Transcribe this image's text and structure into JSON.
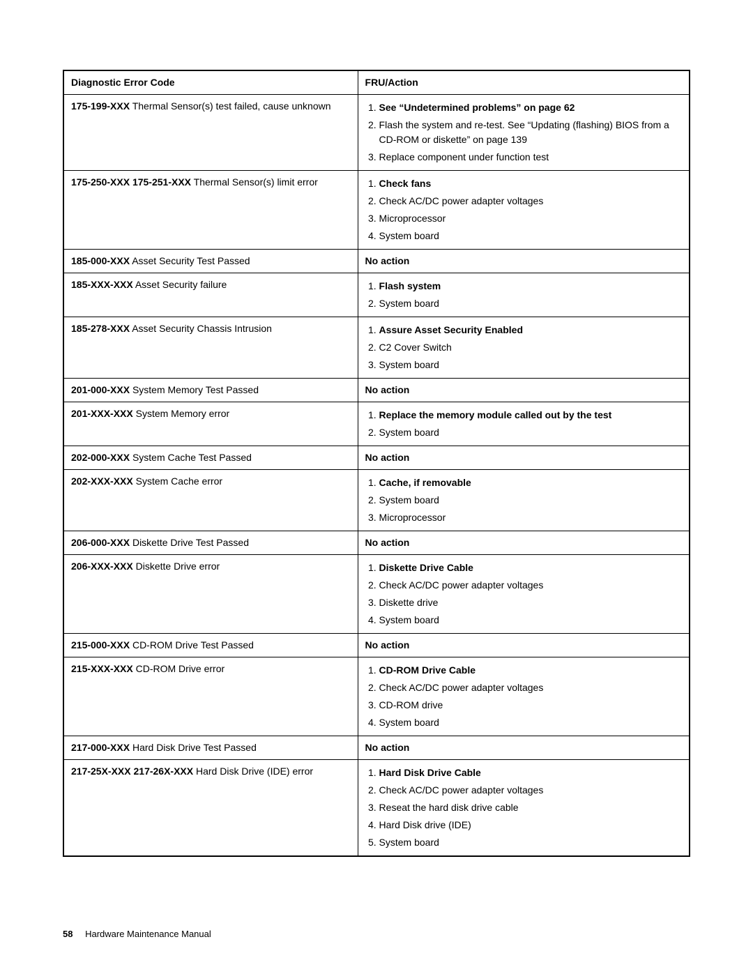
{
  "header": {
    "col1": "Diagnostic Error Code",
    "col2": "FRU/Action"
  },
  "rows": [
    {
      "code": "175-199-XXX",
      "desc": "Thermal Sensor(s) test failed, cause unknown",
      "actions": [
        {
          "text": "See “Undetermined problems” on page 62",
          "bold": true
        },
        {
          "text": "Flash the system and re-test. See “Updating (flashing) BIOS from a CD-ROM or diskette” on page 139",
          "bold": false
        },
        {
          "text": "Replace component under function test",
          "bold": false
        }
      ]
    },
    {
      "code": "175-250-XXX 175-251-XXX",
      "desc": "Thermal Sensor(s) limit error",
      "actions": [
        {
          "text": "Check fans",
          "bold": true
        },
        {
          "text": "Check AC/DC power adapter voltages",
          "bold": false
        },
        {
          "text": "Microprocessor",
          "bold": false
        },
        {
          "text": "System board",
          "bold": false
        }
      ]
    },
    {
      "code": "185-000-XXX",
      "desc": "Asset Security Test Passed",
      "noaction": "No action"
    },
    {
      "code": "185-XXX-XXX",
      "desc": "Asset Security failure",
      "actions": [
        {
          "text": "Flash system",
          "bold": true
        },
        {
          "text": "System board",
          "bold": false
        }
      ]
    },
    {
      "code": "185-278-XXX",
      "desc": "Asset Security Chassis Intrusion",
      "actions": [
        {
          "text": "Assure Asset Security Enabled",
          "bold": true
        },
        {
          "text": "C2 Cover Switch",
          "bold": false
        },
        {
          "text": "System board",
          "bold": false
        }
      ]
    },
    {
      "code": "201-000-XXX",
      "desc": "System Memory Test Passed",
      "noaction": "No action"
    },
    {
      "code": "201-XXX-XXX",
      "desc": "System Memory error",
      "actions": [
        {
          "text": "Replace the memory module called out by the test",
          "bold": true
        },
        {
          "text": "System board",
          "bold": false
        }
      ]
    },
    {
      "code": "202-000-XXX",
      "desc": "System Cache Test Passed",
      "noaction": "No action"
    },
    {
      "code": "202-XXX-XXX",
      "desc": "System Cache error",
      "actions": [
        {
          "text": "Cache, if removable",
          "bold": true
        },
        {
          "text": "System board",
          "bold": false
        },
        {
          "text": "Microprocessor",
          "bold": false
        }
      ]
    },
    {
      "code": "206-000-XXX",
      "desc": "Diskette Drive Test Passed",
      "noaction": "No action"
    },
    {
      "code": "206-XXX-XXX",
      "desc": "Diskette Drive error",
      "actions": [
        {
          "text": "Diskette Drive Cable",
          "bold": true
        },
        {
          "text": "Check AC/DC power adapter voltages",
          "bold": false
        },
        {
          "text": "Diskette drive",
          "bold": false
        },
        {
          "text": "System board",
          "bold": false
        }
      ]
    },
    {
      "code": "215-000-XXX",
      "desc": "CD-ROM Drive Test Passed",
      "noaction": "No action"
    },
    {
      "code": "215-XXX-XXX",
      "desc": "CD-ROM Drive error",
      "actions": [
        {
          "text": "CD-ROM Drive Cable",
          "bold": true
        },
        {
          "text": "Check AC/DC power adapter voltages",
          "bold": false
        },
        {
          "text": "CD-ROM drive",
          "bold": false
        },
        {
          "text": "System board",
          "bold": false
        }
      ]
    },
    {
      "code": "217-000-XXX",
      "desc": "Hard Disk Drive Test Passed",
      "noaction": "No action"
    },
    {
      "code": "217-25X-XXX 217-26X-XXX",
      "desc": "Hard Disk Drive (IDE) error",
      "actions": [
        {
          "text": "Hard Disk Drive Cable",
          "bold": true
        },
        {
          "text": "Check AC/DC power adapter voltages",
          "bold": false
        },
        {
          "text": "Reseat the hard disk drive cable",
          "bold": false
        },
        {
          "text": "Hard Disk drive (IDE)",
          "bold": false
        },
        {
          "text": "System board",
          "bold": false
        }
      ]
    }
  ],
  "footer": {
    "page": "58",
    "title": "Hardware Maintenance Manual"
  }
}
